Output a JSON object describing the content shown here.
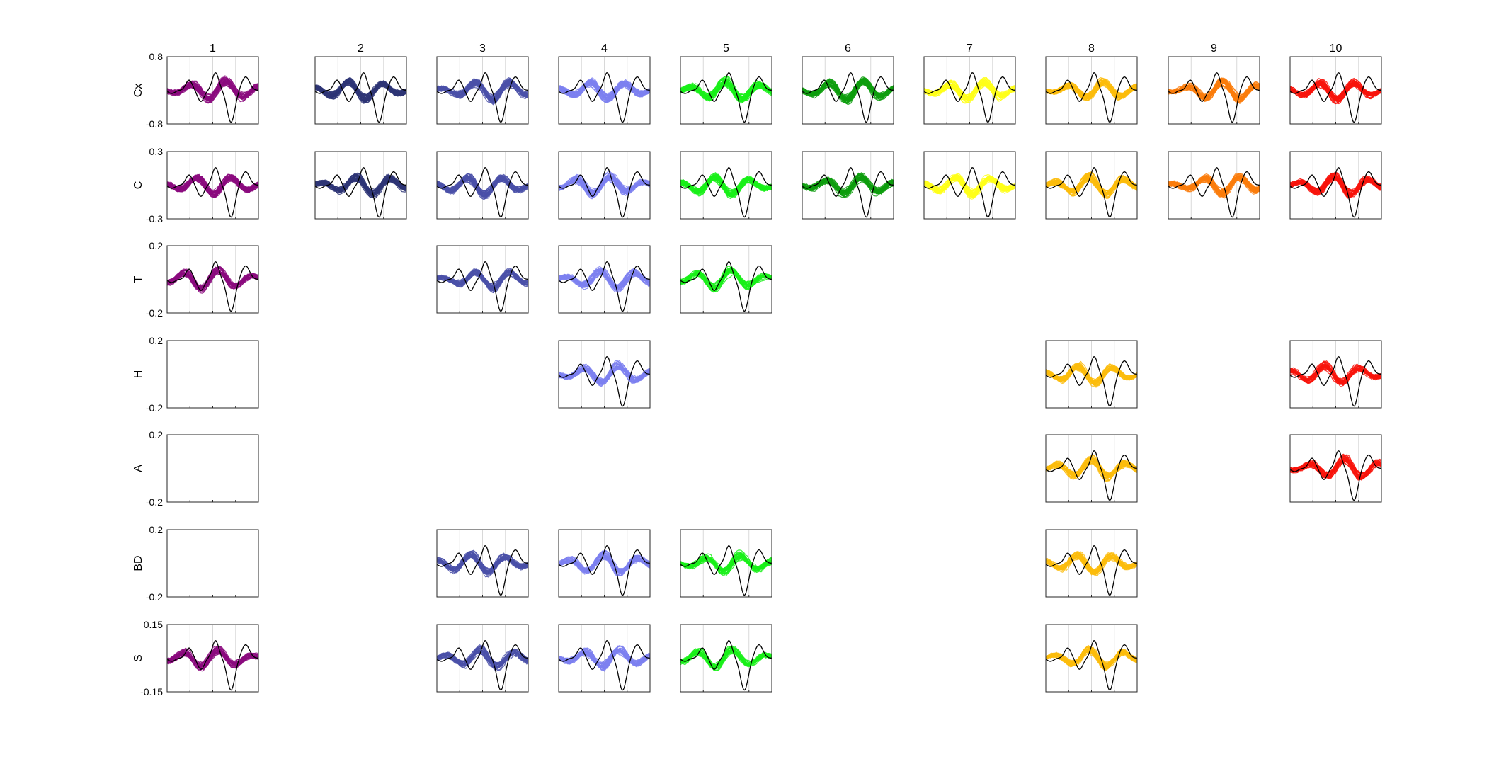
{
  "chart_data": {
    "type": "line",
    "title": "",
    "xlabel": "",
    "ylabel": "",
    "grid": "vertical-lines",
    "reference_trace_color": "#000000",
    "columns": [
      "1",
      "2",
      "3",
      "4",
      "5",
      "6",
      "7",
      "8",
      "9",
      "10"
    ],
    "column_colors": [
      "#8B0A7E",
      "#2E3575",
      "#4A50A8",
      "#7D80F0",
      "#19F019",
      "#0E9E0E",
      "#FFFF19",
      "#FCBC0C",
      "#FA7C0C",
      "#F8140C"
    ],
    "rows": [
      {
        "label": "Cx",
        "ylim": [
          -0.8,
          0.8
        ],
        "ymax_label": "0.8",
        "ymin_label": "-0.8",
        "panels": [
          1,
          2,
          3,
          4,
          5,
          6,
          7,
          8,
          9,
          10
        ]
      },
      {
        "label": "C",
        "ylim": [
          -0.3,
          0.3
        ],
        "ymax_label": "0.3",
        "ymin_label": "-0.3",
        "panels": [
          1,
          2,
          3,
          4,
          5,
          6,
          7,
          8,
          9,
          10
        ]
      },
      {
        "label": "T",
        "ylim": [
          -0.2,
          0.2
        ],
        "ymax_label": "0.2",
        "ymin_label": "-0.2",
        "panels": [
          1,
          3,
          4,
          5
        ]
      },
      {
        "label": "H",
        "ylim": [
          -0.2,
          0.2
        ],
        "ymax_label": "0.2",
        "ymin_label": "-0.2",
        "panels": [
          1,
          4,
          8,
          10
        ]
      },
      {
        "label": "A",
        "ylim": [
          -0.2,
          0.2
        ],
        "ymax_label": "0.2",
        "ymin_label": "-0.2",
        "panels": [
          1,
          8,
          10
        ]
      },
      {
        "label": "BD",
        "ylim": [
          -0.2,
          0.2
        ],
        "ymax_label": "0.2",
        "ymin_label": "-0.2",
        "panels": [
          1,
          3,
          4,
          5,
          8
        ]
      },
      {
        "label": "S",
        "ylim": [
          -0.15,
          0.15
        ],
        "ymax_label": "0.15",
        "ymin_label": "-0.15",
        "panels": [
          1,
          3,
          4,
          5,
          8
        ]
      }
    ],
    "empty_panels": [
      {
        "row": "H",
        "column": "1"
      },
      {
        "row": "A",
        "column": "1"
      },
      {
        "row": "BD",
        "column": "1"
      }
    ]
  }
}
